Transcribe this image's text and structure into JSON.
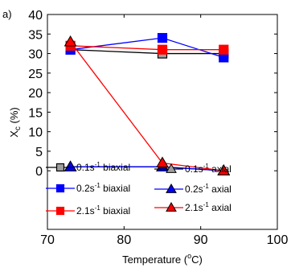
{
  "chart_data": {
    "type": "line",
    "panel_label": "a)",
    "xlabel": {
      "main": "Temperature (",
      "sup": "o",
      "tail": "C)"
    },
    "ylabel": {
      "main": "X",
      "sub": "c",
      "tail": " (%)"
    },
    "xlim": [
      70,
      100
    ],
    "ylim": [
      -15,
      40
    ],
    "xticks": [
      70,
      80,
      90,
      100
    ],
    "yticks": [
      0,
      5,
      10,
      15,
      20,
      25,
      30,
      35,
      40
    ],
    "grid": false,
    "legend_placement": "lower-center",
    "series": [
      {
        "name": {
          "rate": "0.1s",
          "sup": "-1",
          "mode": " biaxial"
        },
        "color": "#000000",
        "face": "#9e9e9e",
        "marker": "square",
        "x": [
          73,
          85,
          93
        ],
        "y": [
          31,
          30,
          30
        ]
      },
      {
        "name": {
          "rate": "0.2s",
          "sup": "-1",
          "mode": " biaxial"
        },
        "color": "#0000ff",
        "face": "#0000ff",
        "marker": "square",
        "x": [
          73,
          85,
          93
        ],
        "y": [
          31,
          34,
          29
        ]
      },
      {
        "name": {
          "rate": "2.1s",
          "sup": "-1",
          "mode": " biaxial"
        },
        "color": "#ff0000",
        "face": "#ff0000",
        "marker": "square",
        "x": [
          73,
          85,
          93
        ],
        "y": [
          32,
          31,
          31
        ]
      },
      {
        "name": {
          "rate": "0.1s",
          "sup": "-1",
          "mode": " axial"
        },
        "color": "#000000",
        "face": "#9e9e9e",
        "marker": "triangle",
        "x": [
          73,
          85,
          93
        ],
        "y": [
          1,
          1,
          0
        ]
      },
      {
        "name": {
          "rate": "0.2s",
          "sup": "-1",
          "mode": " axial"
        },
        "color": "#0000ff",
        "face": "#0000ff",
        "marker": "triangle",
        "x": [
          73,
          85,
          93
        ],
        "y": [
          1,
          1,
          0
        ]
      },
      {
        "name": {
          "rate": "2.1s",
          "sup": "-1",
          "mode": " axial"
        },
        "color": "#ff0000",
        "face": "#ff0000",
        "marker": "triangle",
        "x": [
          73,
          85,
          93
        ],
        "y": [
          33,
          2,
          0
        ]
      }
    ]
  }
}
